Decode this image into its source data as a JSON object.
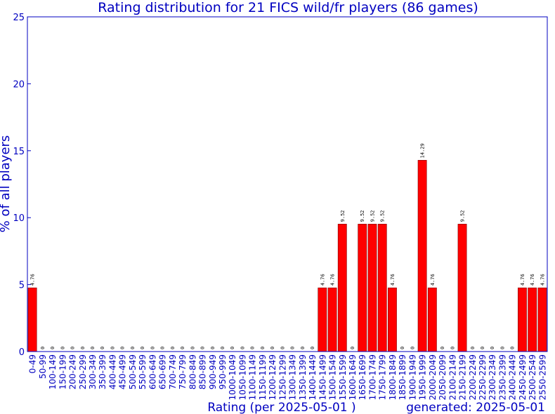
{
  "chart_data": {
    "type": "bar",
    "title": "Rating distribution for 21 FICS wild/fr players (86 games)",
    "xlabel": "Rating (per 2025-05-01 )",
    "ylabel": "% of all players",
    "footer": "generated: 2025-05-01",
    "ylim": [
      0,
      25
    ],
    "yticks": [
      0,
      5,
      10,
      15,
      20,
      25
    ],
    "grid": false,
    "bar_color": "#ff0000",
    "text_color": "#0000c0",
    "categories": [
      "0-49",
      "50-99",
      "100-149",
      "150-199",
      "200-249",
      "250-299",
      "300-349",
      "350-399",
      "400-449",
      "450-499",
      "500-549",
      "550-599",
      "600-649",
      "650-699",
      "700-749",
      "750-799",
      "800-849",
      "850-899",
      "900-949",
      "950-999",
      "1000-1049",
      "1050-1099",
      "1100-1149",
      "1150-1199",
      "1200-1249",
      "1250-1299",
      "1300-1349",
      "1350-1399",
      "1400-1449",
      "1450-1499",
      "1500-1549",
      "1550-1599",
      "1600-1649",
      "1650-1699",
      "1700-1749",
      "1750-1799",
      "1800-1849",
      "1850-1899",
      "1900-1949",
      "1950-1999",
      "2000-2049",
      "2050-2099",
      "2100-2149",
      "2150-2199",
      "2200-2249",
      "2250-2299",
      "2300-2349",
      "2350-2399",
      "2400-2449",
      "2450-2499",
      "2500-2549",
      "2550-2599"
    ],
    "values": [
      4.76,
      0,
      0,
      0,
      0,
      0,
      0,
      0,
      0,
      0,
      0,
      0,
      0,
      0,
      0,
      0,
      0,
      0,
      0,
      0,
      0,
      0,
      0,
      0,
      0,
      0,
      0,
      0,
      0,
      4.76,
      4.76,
      9.52,
      0,
      9.52,
      9.52,
      9.52,
      4.76,
      0,
      0,
      14.29,
      4.76,
      0,
      0,
      9.52,
      0,
      0,
      0,
      0,
      0,
      4.76,
      4.76,
      4.76
    ]
  }
}
